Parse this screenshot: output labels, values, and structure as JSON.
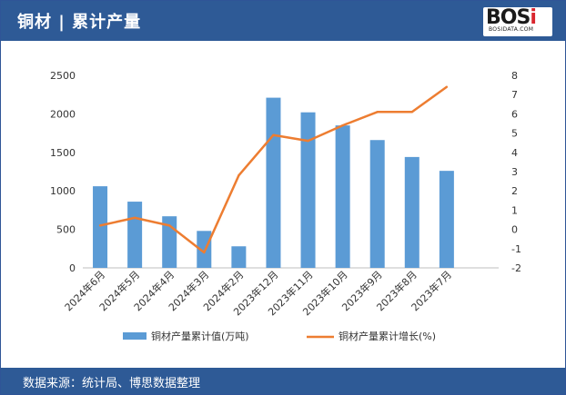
{
  "header": {
    "title": "铜材 | 累计产量"
  },
  "logo": {
    "text": "BOSi",
    "subtext": "BOSIDATA.COM"
  },
  "footer": {
    "source": "数据来源：统计局、博思数据整理"
  },
  "colors": {
    "bar": "#5b9bd5",
    "line": "#ed7d31",
    "brand": "#2e5a96"
  },
  "chart_data": {
    "type": "bar",
    "categories": [
      "2024年6月",
      "2024年5月",
      "2024年4月",
      "2024年3月",
      "2024年2月",
      "2023年12月",
      "2023年11月",
      "2023年10月",
      "2023年9月",
      "2023年8月",
      "2023年7月"
    ],
    "series": [
      {
        "name": "铜材产量累计值(万吨)",
        "type": "bar",
        "axis": "left",
        "values": [
          1060,
          860,
          670,
          480,
          280,
          2210,
          2020,
          1850,
          1660,
          1440,
          1260
        ]
      },
      {
        "name": "铜材产量累计增长(%)",
        "type": "line",
        "axis": "right",
        "values": [
          0.2,
          0.6,
          0.2,
          -1.2,
          2.8,
          4.9,
          4.6,
          5.4,
          6.1,
          6.1,
          7.4
        ]
      }
    ],
    "ylim_left": [
      0,
      2500
    ],
    "yticks_left": [
      "0",
      "500",
      "1000",
      "1500",
      "2000",
      "2500"
    ],
    "ylim_right": [
      -2,
      8
    ],
    "yticks_right": [
      "-2",
      "-1",
      "0",
      "1",
      "2",
      "3",
      "4",
      "5",
      "6",
      "7",
      "8"
    ],
    "legend_position": "bottom"
  }
}
